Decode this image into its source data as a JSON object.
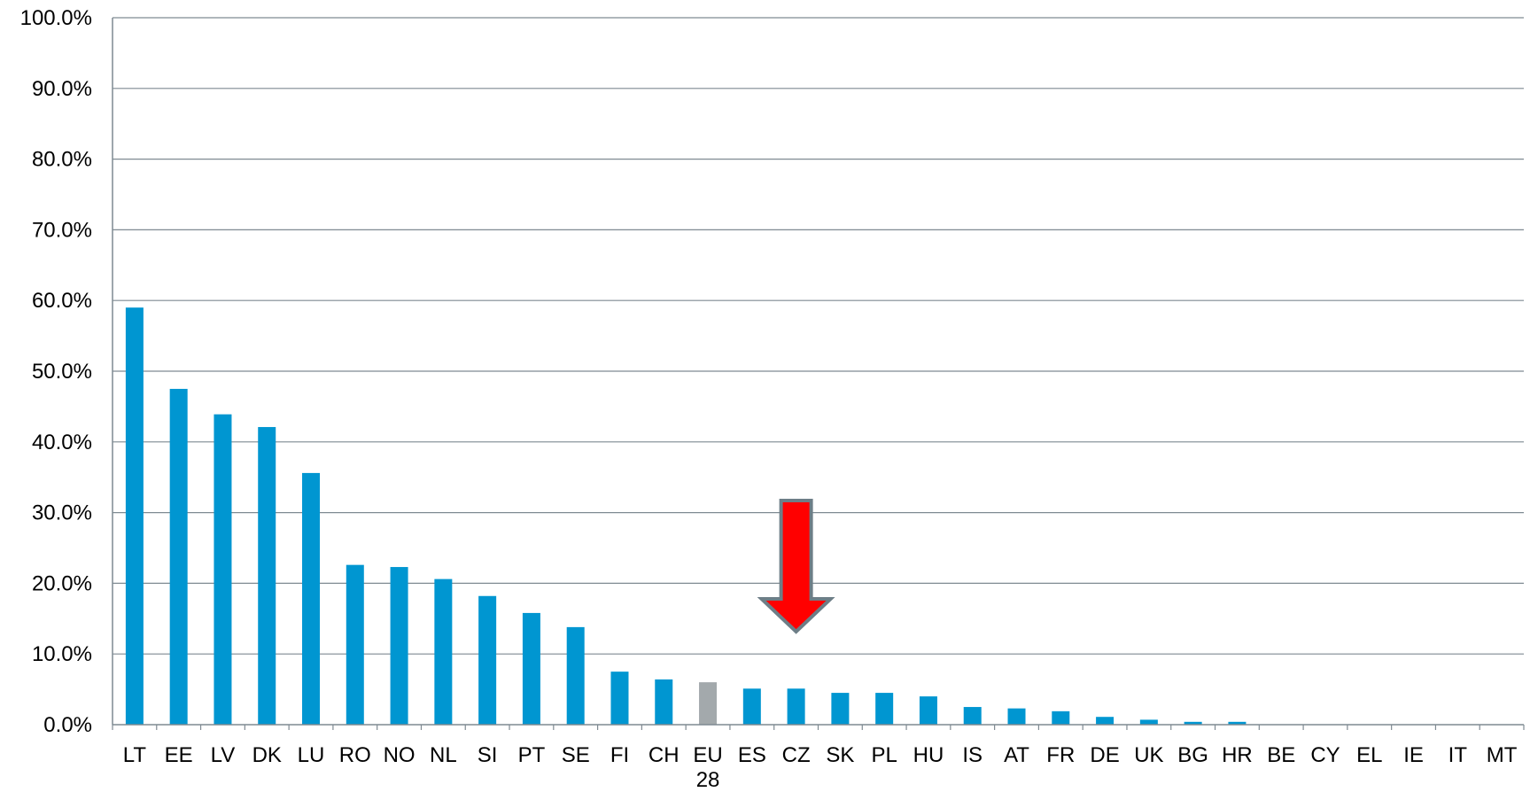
{
  "chart_data": {
    "type": "bar",
    "title": "",
    "xlabel": "",
    "ylabel": "",
    "ylim": [
      0,
      100
    ],
    "y_ticks": [
      "0.0%",
      "10.0%",
      "20.0%",
      "30.0%",
      "40.0%",
      "50.0%",
      "60.0%",
      "70.0%",
      "80.0%",
      "90.0%",
      "100.0%"
    ],
    "y_tick_values": [
      0,
      10,
      20,
      30,
      40,
      50,
      60,
      70,
      80,
      90,
      100
    ],
    "grid": true,
    "categories": [
      "LT",
      "EE",
      "LV",
      "DK",
      "LU",
      "RO",
      "NO",
      "NL",
      "SI",
      "PT",
      "SE",
      "FI",
      "CH",
      "EU 28",
      "ES",
      "CZ",
      "SK",
      "PL",
      "HU",
      "IS",
      "AT",
      "FR",
      "DE",
      "UK",
      "BG",
      "HR",
      "BE",
      "CY",
      "EL",
      "IE",
      "IT",
      "MT"
    ],
    "values": [
      59.0,
      47.5,
      43.9,
      42.1,
      35.6,
      22.6,
      22.3,
      20.6,
      18.2,
      15.8,
      13.8,
      7.5,
      6.4,
      6.0,
      5.1,
      5.1,
      4.5,
      4.5,
      4.0,
      2.5,
      2.3,
      1.9,
      1.1,
      0.7,
      0.4,
      0.4,
      0,
      0,
      0,
      0,
      0,
      0
    ],
    "colors": {
      "bar": "#0096D1",
      "highlight_bar": "#A3A9AC",
      "highlight_category": "EU 28",
      "grid": "#7F8A92",
      "annotation_arrow": "#FF0000",
      "annotation_arrow_border": "#6D7E87"
    },
    "annotation": {
      "type": "arrow-down",
      "target_category": "CZ"
    }
  }
}
